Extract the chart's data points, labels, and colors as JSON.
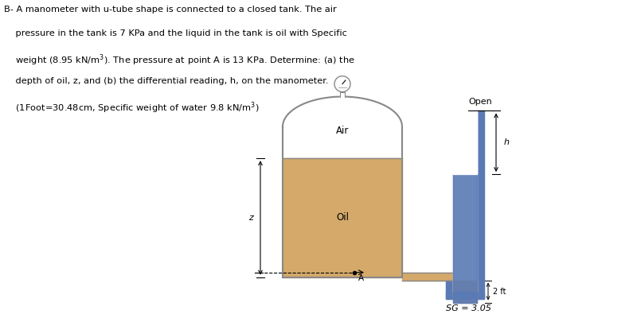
{
  "bg_color": "#ffffff",
  "oil_color": "#d4a96a",
  "tank_edge_color": "#888888",
  "manometer_color": "#5a7ab5",
  "text_color": "#000000",
  "air_label": "Air",
  "oil_label": "Oil",
  "open_label": "Open",
  "sg_label": "SG = 3.05",
  "z_label": "z",
  "h_label": "h",
  "A_label": "A",
  "two_ft_label": "2 ft",
  "fig_w": 8.0,
  "fig_h": 3.95,
  "dpi": 100
}
